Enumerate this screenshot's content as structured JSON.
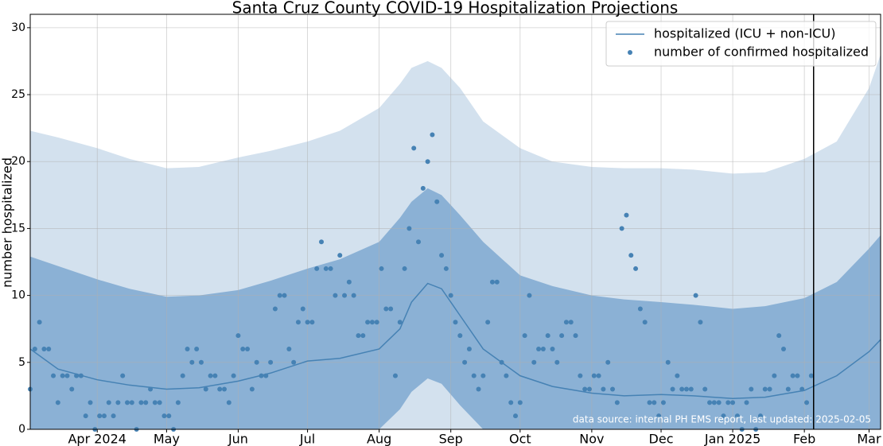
{
  "chart_data": {
    "type": "line",
    "title": "Santa Cruz County COVID-19 Hospitalization Projections",
    "ylabel": "number hospitalized",
    "annotation": "data source: internal PH EMS report, last updated: 2025-02-05",
    "xlim": [
      "2024-03-03",
      "2025-03-06"
    ],
    "ylim": [
      0,
      31
    ],
    "yticks": [
      0,
      5,
      10,
      15,
      20,
      25,
      30
    ],
    "xticks": [
      {
        "value": "2024-04-01",
        "label": "Apr 2024"
      },
      {
        "value": "2024-05-01",
        "label": "May"
      },
      {
        "value": "2024-06-01",
        "label": "Jun"
      },
      {
        "value": "2024-07-01",
        "label": "Jul"
      },
      {
        "value": "2024-08-01",
        "label": "Aug"
      },
      {
        "value": "2024-09-01",
        "label": "Sep"
      },
      {
        "value": "2024-10-01",
        "label": "Oct"
      },
      {
        "value": "2024-11-01",
        "label": "Nov"
      },
      {
        "value": "2024-12-01",
        "label": "Dec"
      },
      {
        "value": "2025-01-01",
        "label": "Jan 2025"
      },
      {
        "value": "2025-02-01",
        "label": "Feb"
      },
      {
        "value": "2025-03-01",
        "label": "Mar"
      }
    ],
    "grid": true,
    "legend": "upper right",
    "vline": "2025-02-05",
    "x": [
      "2024-03-03",
      "2024-03-15",
      "2024-04-01",
      "2024-04-15",
      "2024-05-01",
      "2024-05-15",
      "2024-06-01",
      "2024-06-15",
      "2024-07-01",
      "2024-07-15",
      "2024-08-01",
      "2024-08-10",
      "2024-08-15",
      "2024-08-22",
      "2024-08-28",
      "2024-09-05",
      "2024-09-15",
      "2024-10-01",
      "2024-10-15",
      "2024-11-01",
      "2024-11-15",
      "2024-12-01",
      "2024-12-15",
      "2025-01-01",
      "2025-01-15",
      "2025-02-01",
      "2025-02-15",
      "2025-03-01",
      "2025-03-06"
    ],
    "bands": [
      {
        "color": "#d3e1ee",
        "low": [
          0,
          0,
          0,
          0,
          0,
          0,
          0,
          0,
          0,
          0,
          0,
          0,
          0,
          0,
          0,
          0,
          0,
          0,
          0,
          0,
          0,
          0,
          0,
          0,
          0,
          0,
          0,
          0,
          0
        ],
        "high": [
          22.3,
          21.8,
          21,
          20.2,
          19.5,
          19.6,
          20.3,
          20.8,
          21.5,
          22.3,
          24,
          25.8,
          27,
          27.5,
          27,
          25.5,
          23,
          21,
          20,
          19.6,
          19.5,
          19.5,
          19.4,
          19.1,
          19.2,
          20.2,
          21.5,
          25.5,
          28
        ]
      },
      {
        "color": "#8bb1d5",
        "low": [
          0,
          0,
          0,
          0,
          0,
          0,
          0,
          0,
          0,
          0,
          0,
          1.5,
          2.8,
          3.8,
          3.4,
          1.8,
          0,
          0,
          0,
          0,
          0,
          0,
          0,
          0,
          0,
          0,
          0,
          0,
          0
        ],
        "high": [
          12.9,
          12.2,
          11.2,
          10.5,
          9.9,
          10,
          10.4,
          11.1,
          12,
          12.7,
          14,
          15.8,
          17,
          18,
          17.5,
          16,
          14,
          11.5,
          10.7,
          10,
          9.7,
          9.5,
          9.3,
          9,
          9.2,
          9.8,
          11,
          13.5,
          14.5
        ]
      }
    ],
    "series": [
      {
        "name": "hospitalized (ICU + non-ICU)",
        "color": "#4682b4",
        "values": [
          6,
          4.5,
          3.7,
          3.3,
          3,
          3.1,
          3.6,
          4.2,
          5.1,
          5.3,
          6,
          7.5,
          9.5,
          10.9,
          10.5,
          8.5,
          6,
          4,
          3.2,
          2.7,
          2.5,
          2.6,
          2.5,
          2.3,
          2.4,
          2.9,
          4,
          5.8,
          6.7
        ]
      }
    ],
    "scatter": {
      "name": "number of confirmed hospitalized",
      "color": "#4682b4",
      "x": [
        "2024-03-03",
        "2024-03-05",
        "2024-03-07",
        "2024-03-09",
        "2024-03-11",
        "2024-03-13",
        "2024-03-15",
        "2024-03-17",
        "2024-03-19",
        "2024-03-21",
        "2024-03-23",
        "2024-03-25",
        "2024-03-27",
        "2024-03-29",
        "2024-03-31",
        "2024-04-02",
        "2024-04-04",
        "2024-04-06",
        "2024-04-08",
        "2024-04-10",
        "2024-04-12",
        "2024-04-14",
        "2024-04-16",
        "2024-04-18",
        "2024-04-20",
        "2024-04-22",
        "2024-04-24",
        "2024-04-26",
        "2024-04-28",
        "2024-04-30",
        "2024-05-02",
        "2024-05-04",
        "2024-05-06",
        "2024-05-08",
        "2024-05-10",
        "2024-05-12",
        "2024-05-14",
        "2024-05-16",
        "2024-05-18",
        "2024-05-20",
        "2024-05-22",
        "2024-05-24",
        "2024-05-26",
        "2024-05-28",
        "2024-05-30",
        "2024-06-01",
        "2024-06-03",
        "2024-06-05",
        "2024-06-07",
        "2024-06-09",
        "2024-06-11",
        "2024-06-13",
        "2024-06-15",
        "2024-06-17",
        "2024-06-19",
        "2024-06-21",
        "2024-06-23",
        "2024-06-25",
        "2024-06-27",
        "2024-06-29",
        "2024-07-01",
        "2024-07-03",
        "2024-07-05",
        "2024-07-07",
        "2024-07-09",
        "2024-07-11",
        "2024-07-13",
        "2024-07-15",
        "2024-07-17",
        "2024-07-19",
        "2024-07-21",
        "2024-07-23",
        "2024-07-25",
        "2024-07-27",
        "2024-07-29",
        "2024-07-31",
        "2024-08-02",
        "2024-08-04",
        "2024-08-06",
        "2024-08-08",
        "2024-08-10",
        "2024-08-12",
        "2024-08-14",
        "2024-08-16",
        "2024-08-18",
        "2024-08-20",
        "2024-08-22",
        "2024-08-24",
        "2024-08-26",
        "2024-08-28",
        "2024-08-30",
        "2024-09-01",
        "2024-09-03",
        "2024-09-05",
        "2024-09-07",
        "2024-09-09",
        "2024-09-11",
        "2024-09-13",
        "2024-09-15",
        "2024-09-17",
        "2024-09-19",
        "2024-09-21",
        "2024-09-23",
        "2024-09-25",
        "2024-09-27",
        "2024-09-29",
        "2024-10-01",
        "2024-10-03",
        "2024-10-05",
        "2024-10-07",
        "2024-10-09",
        "2024-10-11",
        "2024-10-13",
        "2024-10-15",
        "2024-10-17",
        "2024-10-19",
        "2024-10-21",
        "2024-10-23",
        "2024-10-25",
        "2024-10-27",
        "2024-10-29",
        "2024-10-31",
        "2024-11-02",
        "2024-11-04",
        "2024-11-06",
        "2024-11-08",
        "2024-11-10",
        "2024-11-12",
        "2024-11-14",
        "2024-11-16",
        "2024-11-18",
        "2024-11-20",
        "2024-11-22",
        "2024-11-24",
        "2024-11-26",
        "2024-11-28",
        "2024-11-30",
        "2024-12-02",
        "2024-12-04",
        "2024-12-06",
        "2024-12-08",
        "2024-12-10",
        "2024-12-12",
        "2024-12-14",
        "2024-12-16",
        "2024-12-18",
        "2024-12-20",
        "2024-12-22",
        "2024-12-24",
        "2024-12-26",
        "2024-12-28",
        "2024-12-30",
        "2025-01-01",
        "2025-01-03",
        "2025-01-05",
        "2025-01-07",
        "2025-01-09",
        "2025-01-11",
        "2025-01-13",
        "2025-01-15",
        "2025-01-17",
        "2025-01-19",
        "2025-01-21",
        "2025-01-23",
        "2025-01-25",
        "2025-01-27",
        "2025-01-29",
        "2025-01-31",
        "2025-02-02",
        "2025-02-04"
      ],
      "values": [
        3,
        6,
        8,
        6,
        6,
        4,
        2,
        4,
        4,
        3,
        4,
        4,
        1,
        2,
        0,
        1,
        1,
        2,
        1,
        2,
        4,
        2,
        2,
        0,
        2,
        2,
        3,
        2,
        2,
        1,
        1,
        0,
        2,
        4,
        6,
        5,
        6,
        5,
        3,
        4,
        4,
        3,
        3,
        2,
        4,
        7,
        6,
        6,
        3,
        5,
        4,
        4,
        5,
        9,
        10,
        10,
        6,
        5,
        8,
        9,
        8,
        8,
        12,
        14,
        12,
        12,
        10,
        13,
        10,
        11,
        10,
        7,
        7,
        8,
        8,
        8,
        12,
        9,
        9,
        4,
        8,
        12,
        15,
        21,
        14,
        18,
        20,
        22,
        17,
        13,
        12,
        10,
        8,
        7,
        5,
        6,
        4,
        3,
        4,
        8,
        11,
        11,
        5,
        4,
        2,
        1,
        2,
        7,
        10,
        5,
        6,
        6,
        7,
        6,
        5,
        7,
        8,
        8,
        7,
        4,
        3,
        3,
        4,
        4,
        3,
        5,
        3,
        2,
        15,
        16,
        13,
        12,
        9,
        8,
        2,
        2,
        1,
        2,
        5,
        3,
        4,
        3,
        3,
        3,
        10,
        8,
        3,
        2,
        2,
        2,
        1,
        2,
        2,
        1,
        0,
        2,
        3,
        0,
        1,
        3,
        3,
        4,
        7,
        6,
        3,
        4,
        4,
        3,
        2,
        4
      ]
    }
  }
}
